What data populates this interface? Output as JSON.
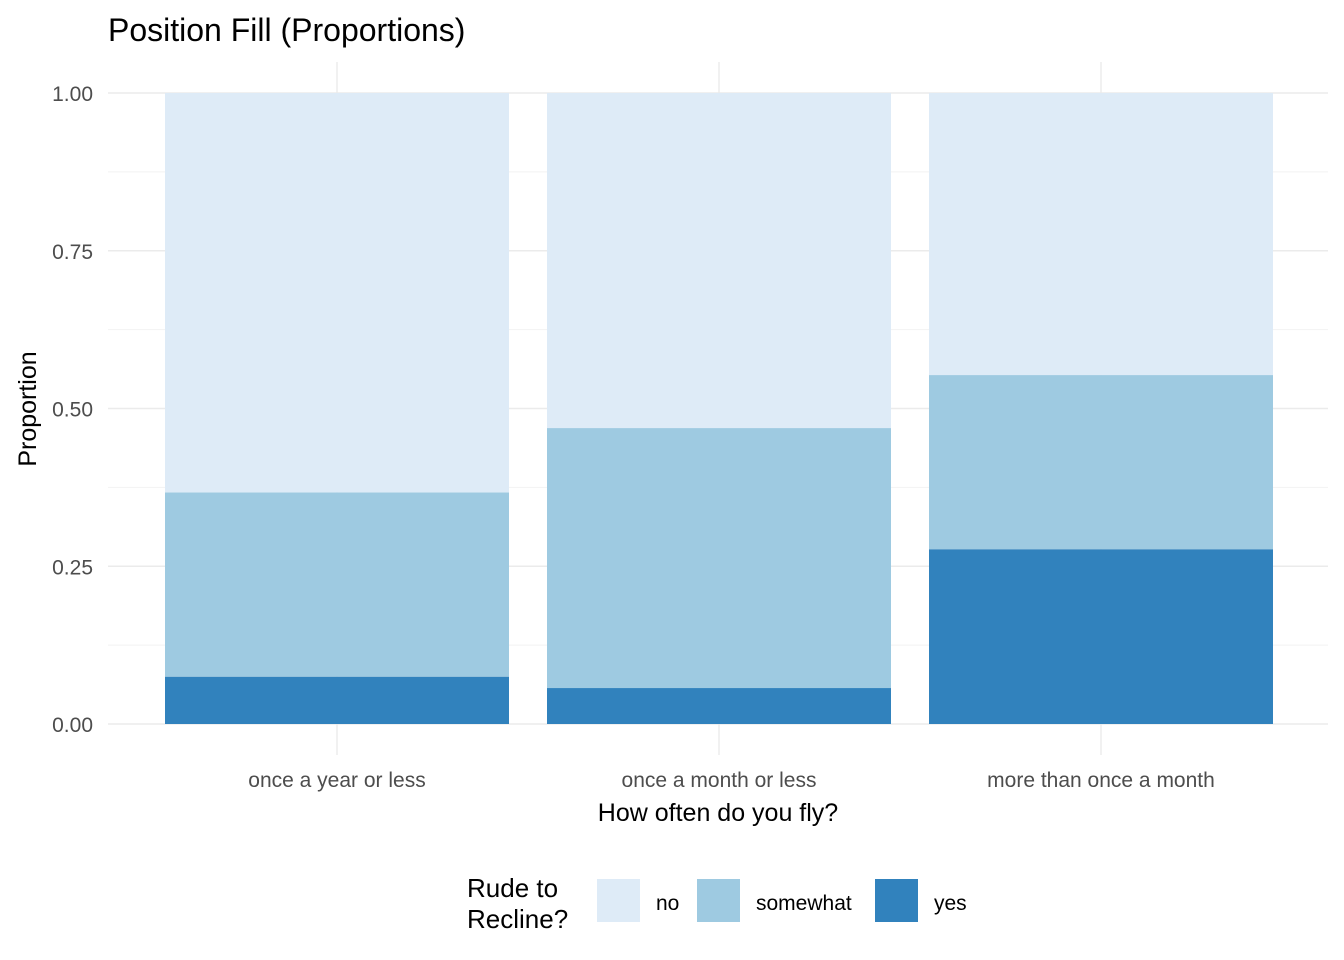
{
  "chart_data": {
    "type": "bar",
    "stacked": true,
    "position": "fill",
    "title": "Position Fill (Proportions)",
    "xlabel": "How often do you fly?",
    "ylabel": "Proportion",
    "categories": [
      "once a year or less",
      "once a month or less",
      "more than once a month"
    ],
    "series": [
      {
        "name": "yes",
        "color": "#3182bd",
        "values": [
          0.075,
          0.057,
          0.277
        ]
      },
      {
        "name": "somewhat",
        "color": "#9ecae1",
        "values": [
          0.292,
          0.412,
          0.276
        ]
      },
      {
        "name": "no",
        "color": "#deebf7",
        "values": [
          0.633,
          0.531,
          0.447
        ]
      }
    ],
    "ylim": [
      0,
      1
    ],
    "yticks": [
      0,
      0.25,
      0.5,
      0.75,
      1
    ],
    "ytick_labels": [
      "0.00",
      "0.25",
      "0.50",
      "0.75",
      "1.00"
    ],
    "grid": true,
    "legend": {
      "title_lines": [
        "Rude to",
        "Recline?"
      ],
      "placement": "bottom",
      "entries": [
        {
          "label": "no",
          "color": "#deebf7"
        },
        {
          "label": "somewhat",
          "color": "#9ecae1"
        },
        {
          "label": "yes",
          "color": "#3182bd"
        }
      ]
    }
  }
}
